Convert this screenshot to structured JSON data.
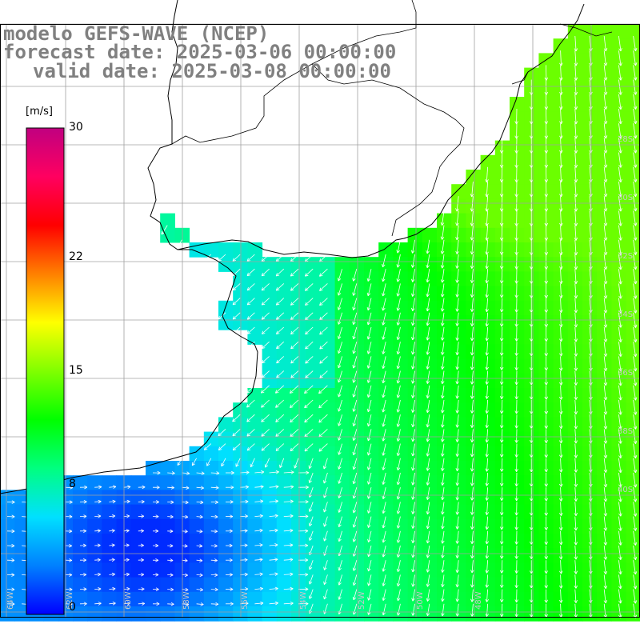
{
  "header": {
    "line1": "modelo GEFS-WAVE (NCEP)",
    "line2": "forecast date: 2025-03-06 00:00:00",
    "line3": "valid date: 2025-03-08 00:00:00"
  },
  "colorbar": {
    "unit": "[m/s]",
    "ticks": [
      "30",
      "22",
      "15",
      "8",
      "0"
    ],
    "tick_values": [
      30,
      22,
      15,
      8,
      0
    ],
    "range": [
      0,
      30
    ],
    "stops": [
      "#0000ff",
      "#0080ff",
      "#00e0ff",
      "#00ff80",
      "#00ff00",
      "#80ff00",
      "#ffff00",
      "#ff8000",
      "#ff0000",
      "#ff0060",
      "#c00080"
    ]
  },
  "map_labels": {
    "lon_ticks": [
      "64W",
      "62W",
      "60W",
      "58W",
      "56W",
      "54W",
      "52W",
      "50W",
      "48W"
    ],
    "lat_ticks": [
      "28S",
      "30S",
      "32S",
      "34S",
      "36S",
      "38S",
      "40S"
    ]
  },
  "colors": {
    "land": "#ffffff",
    "coast": "#000000",
    "grid": "#a0a0a0",
    "arrow": "#ffffff",
    "title": "#808080"
  }
}
